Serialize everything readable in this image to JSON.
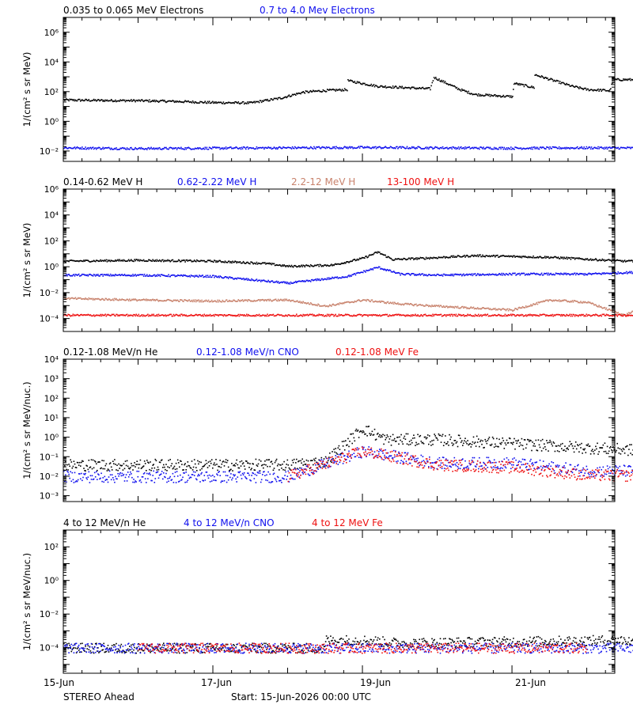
{
  "footer": {
    "spacecraft": "STEREO Ahead",
    "start": "Start: 15-Jun-2026 00:00 UTC"
  },
  "colors": {
    "black": "#000000",
    "blue": "#1010ee",
    "brown": "#c8826c",
    "red": "#ee1010"
  },
  "chart_data": [
    {
      "type": "scatter",
      "yscale": "log",
      "ylim": [
        0.002,
        10000000
      ],
      "ytick_labels": [
        "10⁻²",
        "10⁰",
        "10²",
        "10⁴",
        "10⁶"
      ],
      "ytick_values": [
        0.01,
        1,
        100,
        10000,
        1000000
      ],
      "ylabel": "1/(cm² s sr MeV)",
      "xlim": [
        "15-Jun",
        "22-Jun 09:00"
      ],
      "xtick_labels": [
        "15-Jun",
        "17-Jun",
        "19-Jun",
        "21-Jun"
      ],
      "xtick_days": [
        0,
        2,
        4,
        6
      ],
      "series": [
        {
          "name": "0.035 to 0.065 MeV Electrons",
          "color": "black",
          "points": [
            [
              0,
              30
            ],
            [
              0.5,
              28
            ],
            [
              1,
              27
            ],
            [
              1.5,
              24
            ],
            [
              2,
              20
            ],
            [
              2.5,
              19
            ],
            [
              2.9,
              40
            ],
            [
              3.2,
              100
            ],
            [
              3.5,
              130
            ],
            [
              3.8,
              150
            ],
            [
              3.8,
              600
            ],
            [
              4.2,
              250
            ],
            [
              4.9,
              170
            ],
            [
              4.95,
              1000
            ],
            [
              5.3,
              150
            ],
            [
              5.5,
              70
            ],
            [
              6.0,
              50
            ],
            [
              6.02,
              400
            ],
            [
              6.3,
              200
            ],
            [
              6.3,
              1500
            ],
            [
              6.8,
              250
            ],
            [
              7.0,
              150
            ],
            [
              7.3,
              130
            ],
            [
              7.35,
              700
            ],
            [
              7.8,
              700
            ],
            [
              8.0,
              450
            ]
          ]
        },
        {
          "name": "0.7 to 4.0 Mev Electrons",
          "color": "blue",
          "points": [
            [
              0,
              0.018
            ],
            [
              1,
              0.016
            ],
            [
              2,
              0.017
            ],
            [
              3,
              0.018
            ],
            [
              4,
              0.019
            ],
            [
              5,
              0.018
            ],
            [
              6,
              0.017
            ],
            [
              7,
              0.018
            ],
            [
              8,
              0.017
            ]
          ]
        }
      ]
    },
    {
      "type": "scatter",
      "yscale": "log",
      "ylim": [
        1e-05,
        1000000
      ],
      "ytick_labels": [
        "10⁻⁴",
        "10⁻²",
        "10⁰",
        "10²",
        "10⁴",
        "10⁶"
      ],
      "ytick_values": [
        0.0001,
        0.01,
        1,
        100,
        10000,
        1000000
      ],
      "ylabel": "1/(cm² s sr MeV)",
      "xlim": [
        "15-Jun",
        "22-Jun 09:00"
      ],
      "xtick_labels": [
        "15-Jun",
        "17-Jun",
        "19-Jun",
        "21-Jun"
      ],
      "xtick_days": [
        0,
        2,
        4,
        6
      ],
      "series": [
        {
          "name": "0.14-0.62 MeV H",
          "color": "black",
          "points": [
            [
              0,
              3
            ],
            [
              1,
              3.5
            ],
            [
              2,
              3
            ],
            [
              2.7,
              2
            ],
            [
              3,
              1.2
            ],
            [
              3.6,
              1.5
            ],
            [
              4,
              5
            ],
            [
              4.2,
              15
            ],
            [
              4.4,
              4
            ],
            [
              4.8,
              5
            ],
            [
              5.5,
              8
            ],
            [
              6.5,
              6
            ],
            [
              7.5,
              3
            ],
            [
              8,
              3
            ]
          ]
        },
        {
          "name": "0.62-2.22 MeV H",
          "color": "blue",
          "points": [
            [
              0,
              0.25
            ],
            [
              1,
              0.25
            ],
            [
              2,
              0.2
            ],
            [
              3,
              0.06
            ],
            [
              3.8,
              0.2
            ],
            [
              4.2,
              1
            ],
            [
              4.5,
              0.3
            ],
            [
              5,
              0.25
            ],
            [
              6,
              0.3
            ],
            [
              7,
              0.3
            ],
            [
              8,
              0.5
            ]
          ]
        },
        {
          "name": "2.2-12 MeV H",
          "color": "brown",
          "points": [
            [
              0,
              0.004
            ],
            [
              1,
              0.003
            ],
            [
              2,
              0.0025
            ],
            [
              3,
              0.003
            ],
            [
              3.5,
              0.001
            ],
            [
              4,
              0.003
            ],
            [
              4.5,
              0.0015
            ],
            [
              5,
              0.001
            ],
            [
              6,
              0.0005
            ],
            [
              6.5,
              0.003
            ],
            [
              7,
              0.002
            ],
            [
              7.5,
              0.0002
            ],
            [
              8,
              0.004
            ]
          ]
        },
        {
          "name": "13-100 MeV H",
          "color": "red",
          "points": [
            [
              0,
              0.0002
            ],
            [
              2,
              0.0002
            ],
            [
              4,
              0.0002
            ],
            [
              6,
              0.0002
            ],
            [
              8,
              0.0002
            ]
          ]
        }
      ]
    },
    {
      "type": "scatter",
      "yscale": "log",
      "ylim": [
        0.0005,
        10000
      ],
      "ytick_labels": [
        "10⁻³",
        "10⁻²",
        "10⁻¹",
        "10⁰",
        "10¹",
        "10²",
        "10³",
        "10⁴"
      ],
      "ytick_values": [
        0.001,
        0.01,
        0.1,
        1,
        10,
        100,
        1000,
        10000
      ],
      "ylabel": "1/(cm² s sr MeV/nuc.)",
      "xlim": [
        "15-Jun",
        "22-Jun 09:00"
      ],
      "xtick_labels": [
        "15-Jun",
        "17-Jun",
        "19-Jun",
        "21-Jun"
      ],
      "xtick_days": [
        0,
        2,
        4,
        6
      ],
      "series": [
        {
          "name": "0.12-1.08 MeV/n He",
          "color": "black",
          "points": [
            [
              0,
              0.04
            ],
            [
              1,
              0.04
            ],
            [
              2,
              0.04
            ],
            [
              3,
              0.04
            ],
            [
              3.5,
              0.06
            ],
            [
              4,
              3
            ],
            [
              4.3,
              0.8
            ],
            [
              5,
              0.8
            ],
            [
              6,
              0.5
            ],
            [
              7,
              0.3
            ],
            [
              8,
              0.2
            ]
          ]
        },
        {
          "name": "0.12-1.08 MeV/n CNO",
          "color": "blue",
          "points": [
            [
              0,
              0.01
            ],
            [
              1,
              0.01
            ],
            [
              2,
              0.01
            ],
            [
              3,
              0.01
            ],
            [
              4,
              0.2
            ],
            [
              5,
              0.05
            ],
            [
              6,
              0.05
            ],
            [
              7,
              0.02
            ],
            [
              8,
              0.02
            ]
          ]
        },
        {
          "name": "0.12-1.08 MeV Fe",
          "color": "red",
          "points": [
            [
              3,
              0.01
            ],
            [
              4,
              0.2
            ],
            [
              5,
              0.04
            ],
            [
              6,
              0.03
            ],
            [
              7,
              0.012
            ],
            [
              8,
              0.011
            ]
          ]
        }
      ]
    },
    {
      "type": "scatter",
      "yscale": "log",
      "ylim": [
        3e-06,
        1000
      ],
      "ytick_labels": [
        "10⁻⁴",
        "10⁻²",
        "10⁰",
        "10²"
      ],
      "ytick_values": [
        0.0001,
        0.01,
        1,
        100
      ],
      "ylabel": "1/(cm² s sr MeV/nuc.)",
      "xlim": [
        "15-Jun",
        "22-Jun 09:00"
      ],
      "xtick_labels": [
        "15-Jun",
        "17-Jun",
        "19-Jun",
        "21-Jun"
      ],
      "xtick_days": [
        0,
        2,
        4,
        6
      ],
      "series": [
        {
          "name": "4 to 12 MeV/n He",
          "color": "black",
          "points": [
            [
              0,
              0.0001
            ],
            [
              2,
              0.0001
            ],
            [
              3.5,
              0.0001
            ],
            [
              3.5,
              0.0003
            ],
            [
              4,
              0.0003
            ],
            [
              4.5,
              0.0002
            ],
            [
              7.5,
              0.0003
            ],
            [
              8,
              0.0001
            ]
          ]
        },
        {
          "name": "4 to 12 MeV/n CNO",
          "color": "blue",
          "points": [
            [
              0,
              0.0001
            ],
            [
              4,
              0.0001
            ],
            [
              8,
              0.0001
            ]
          ]
        },
        {
          "name": "4 to 12 MeV Fe",
          "color": "red",
          "points": [
            [
              1,
              0.0001
            ],
            [
              5,
              0.0001
            ],
            [
              7,
              0.0001
            ]
          ]
        }
      ]
    }
  ]
}
